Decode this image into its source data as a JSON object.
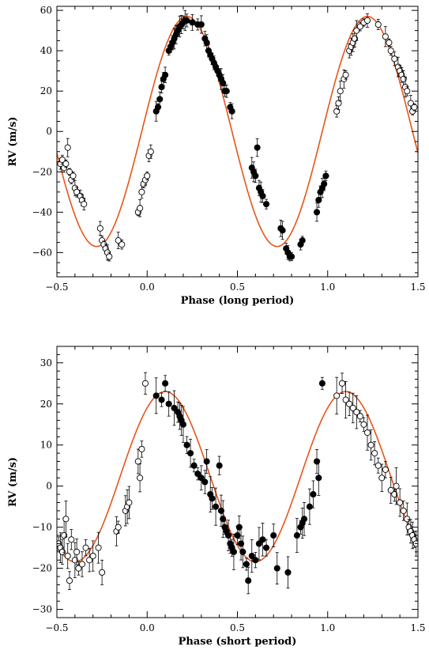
{
  "chart_data": [
    {
      "type": "scatter",
      "xlabel": "Phase (long period)",
      "ylabel": "RV (m/s)",
      "xlim": [
        -0.5,
        1.5
      ],
      "ylim": [
        -72,
        62
      ],
      "xticks": [
        -0.5,
        0.0,
        0.5,
        1.0,
        1.5
      ],
      "xtick_labels": [
        "−0.5",
        "0.0",
        "0.5",
        "1.0",
        "1.5"
      ],
      "yticks": [
        -60,
        -40,
        -20,
        0,
        20,
        40,
        60
      ],
      "ytick_labels": [
        "−60",
        "−40",
        "−20",
        "0",
        "20",
        "40",
        "60"
      ],
      "grid": false,
      "legend": "none",
      "model_curve": {
        "name": "",
        "color": "#e8541a",
        "amplitude": 57,
        "period": 1.0,
        "phase_of_max": 0.22
      },
      "series": [
        {
          "marker": "filled-circle",
          "points": [
            [
              0.05,
              10
            ],
            [
              0.06,
              12
            ],
            [
              0.07,
              16
            ],
            [
              0.08,
              22
            ],
            [
              0.09,
              26
            ],
            [
              0.1,
              28
            ],
            [
              0.12,
              40
            ],
            [
              0.13,
              42
            ],
            [
              0.14,
              44
            ],
            [
              0.15,
              46
            ],
            [
              0.16,
              48
            ],
            [
              0.17,
              50
            ],
            [
              0.18,
              52
            ],
            [
              0.19,
              53
            ],
            [
              0.2,
              54
            ],
            [
              0.21,
              55
            ],
            [
              0.22,
              55
            ],
            [
              0.25,
              54
            ],
            [
              0.28,
              53
            ],
            [
              0.3,
              53
            ],
            [
              0.32,
              46
            ],
            [
              0.33,
              44
            ],
            [
              0.34,
              40
            ],
            [
              0.35,
              38
            ],
            [
              0.36,
              36
            ],
            [
              0.37,
              34
            ],
            [
              0.38,
              32
            ],
            [
              0.39,
              30
            ],
            [
              0.4,
              28
            ],
            [
              0.41,
              26
            ],
            [
              0.42,
              24
            ],
            [
              0.43,
              20
            ],
            [
              0.44,
              20
            ],
            [
              0.46,
              12
            ],
            [
              0.47,
              10
            ],
            [
              0.58,
              -18
            ],
            [
              0.59,
              -20
            ],
            [
              0.6,
              -22
            ],
            [
              0.61,
              -8
            ],
            [
              0.62,
              -28
            ],
            [
              0.63,
              -30
            ],
            [
              0.64,
              -32
            ],
            [
              0.66,
              -36
            ],
            [
              0.74,
              -48
            ],
            [
              0.75,
              -49
            ],
            [
              0.77,
              -58
            ],
            [
              0.78,
              -60
            ],
            [
              0.79,
              -62
            ],
            [
              0.8,
              -62
            ],
            [
              0.85,
              -56
            ],
            [
              0.86,
              -54
            ],
            [
              0.94,
              -40
            ],
            [
              0.95,
              -34
            ],
            [
              0.96,
              -30
            ],
            [
              0.97,
              -28
            ],
            [
              0.98,
              -26
            ],
            [
              0.99,
              -22
            ]
          ]
        },
        {
          "marker": "open-circle",
          "points": [
            [
              -0.48,
              -16
            ],
            [
              -0.47,
              -14
            ],
            [
              -0.46,
              -18
            ],
            [
              -0.45,
              -16
            ],
            [
              -0.44,
              -8
            ],
            [
              -0.43,
              -20
            ],
            [
              -0.42,
              -24
            ],
            [
              -0.41,
              -22
            ],
            [
              -0.4,
              -28
            ],
            [
              -0.39,
              -30
            ],
            [
              -0.37,
              -32
            ],
            [
              -0.36,
              -34
            ],
            [
              -0.35,
              -36
            ],
            [
              -0.26,
              -48
            ],
            [
              -0.25,
              -54
            ],
            [
              -0.24,
              -56
            ],
            [
              -0.23,
              -58
            ],
            [
              -0.22,
              -60
            ],
            [
              -0.21,
              -62
            ],
            [
              -0.16,
              -54
            ],
            [
              -0.14,
              -56
            ],
            [
              -0.05,
              -40
            ],
            [
              -0.04,
              -38
            ],
            [
              -0.03,
              -30
            ],
            [
              -0.02,
              -26
            ],
            [
              -0.01,
              -24
            ],
            [
              0.0,
              -22
            ],
            [
              0.01,
              -12
            ],
            [
              0.02,
              -10
            ],
            [
              1.05,
              10
            ],
            [
              1.06,
              14
            ],
            [
              1.07,
              20
            ],
            [
              1.09,
              26
            ],
            [
              1.1,
              28
            ],
            [
              1.12,
              40
            ],
            [
              1.13,
              42
            ],
            [
              1.14,
              44
            ],
            [
              1.15,
              46
            ],
            [
              1.16,
              50
            ],
            [
              1.18,
              52
            ],
            [
              1.2,
              54
            ],
            [
              1.22,
              55
            ],
            [
              1.28,
              53
            ],
            [
              1.32,
              47
            ],
            [
              1.34,
              44
            ],
            [
              1.35,
              40
            ],
            [
              1.37,
              36
            ],
            [
              1.39,
              32
            ],
            [
              1.4,
              30
            ],
            [
              1.41,
              28
            ],
            [
              1.42,
              26
            ],
            [
              1.43,
              22
            ],
            [
              1.44,
              20
            ],
            [
              1.46,
              14
            ],
            [
              1.47,
              10
            ],
            [
              1.48,
              12
            ]
          ]
        }
      ]
    },
    {
      "type": "scatter",
      "xlabel": "Phase (short period)",
      "ylabel": "RV (m/s)",
      "xlim": [
        -0.5,
        1.5
      ],
      "ylim": [
        -32,
        34
      ],
      "xticks": [
        -0.5,
        0.0,
        0.5,
        1.0,
        1.5
      ],
      "xtick_labels": [
        "−0.5",
        "0.0",
        "0.5",
        "1.0",
        "1.5"
      ],
      "yticks": [
        -30,
        -20,
        -10,
        0,
        10,
        20,
        30
      ],
      "ytick_labels": [
        "−30",
        "−20",
        "−10",
        "0",
        "10",
        "20",
        "30"
      ],
      "grid": false,
      "legend": "none",
      "model_curve": {
        "name": "",
        "color": "#e8541a",
        "amplitude": 20.7,
        "offset": 2.3,
        "period": 1.0,
        "phase_of_max": 0.1
      },
      "series": [
        {
          "marker": "filled-circle",
          "points": [
            [
              0.05,
              22
            ],
            [
              0.08,
              21
            ],
            [
              0.1,
              25
            ],
            [
              0.12,
              20
            ],
            [
              0.15,
              19
            ],
            [
              0.17,
              18
            ],
            [
              0.18,
              17
            ],
            [
              0.19,
              16
            ],
            [
              0.2,
              15
            ],
            [
              0.22,
              10
            ],
            [
              0.24,
              8
            ],
            [
              0.26,
              5
            ],
            [
              0.28,
              3
            ],
            [
              0.3,
              2
            ],
            [
              0.32,
              1
            ],
            [
              0.33,
              6
            ],
            [
              0.35,
              -2
            ],
            [
              0.36,
              -3
            ],
            [
              0.38,
              -5
            ],
            [
              0.4,
              5
            ],
            [
              0.41,
              -6
            ],
            [
              0.42,
              -8
            ],
            [
              0.43,
              -10
            ],
            [
              0.44,
              -11
            ],
            [
              0.45,
              -12
            ],
            [
              0.46,
              -14
            ],
            [
              0.47,
              -15
            ],
            [
              0.48,
              -16
            ],
            [
              0.5,
              -12
            ],
            [
              0.51,
              -10
            ],
            [
              0.52,
              -14
            ],
            [
              0.53,
              -16
            ],
            [
              0.55,
              -19
            ],
            [
              0.56,
              -23
            ],
            [
              0.58,
              -17
            ],
            [
              0.6,
              -18
            ],
            [
              0.62,
              -14
            ],
            [
              0.64,
              -13
            ],
            [
              0.66,
              -15
            ],
            [
              0.7,
              -12
            ],
            [
              0.72,
              -20
            ],
            [
              0.78,
              -21
            ],
            [
              0.83,
              -12
            ],
            [
              0.85,
              -10
            ],
            [
              0.86,
              -9
            ],
            [
              0.87,
              -8
            ],
            [
              0.9,
              -5
            ],
            [
              0.92,
              -2
            ],
            [
              0.94,
              6
            ],
            [
              0.95,
              2
            ],
            [
              0.97,
              25
            ]
          ]
        },
        {
          "marker": "open-circle",
          "points": [
            [
              -0.49,
              -14
            ],
            [
              -0.48,
              -15
            ],
            [
              -0.47,
              -16
            ],
            [
              -0.46,
              -12
            ],
            [
              -0.45,
              -8
            ],
            [
              -0.44,
              -17
            ],
            [
              -0.43,
              -23
            ],
            [
              -0.42,
              -13
            ],
            [
              -0.4,
              -18
            ],
            [
              -0.39,
              -16
            ],
            [
              -0.38,
              -20
            ],
            [
              -0.36,
              -19
            ],
            [
              -0.34,
              -15
            ],
            [
              -0.32,
              -18
            ],
            [
              -0.3,
              -17
            ],
            [
              -0.27,
              -15
            ],
            [
              -0.25,
              -21
            ],
            [
              -0.17,
              -11
            ],
            [
              -0.16,
              -10
            ],
            [
              -0.12,
              -6
            ],
            [
              -0.11,
              -5
            ],
            [
              -0.1,
              -4
            ],
            [
              -0.05,
              6
            ],
            [
              -0.04,
              2
            ],
            [
              -0.03,
              9
            ],
            [
              -0.01,
              25
            ],
            [
              1.05,
              22
            ],
            [
              1.08,
              25
            ],
            [
              1.1,
              21
            ],
            [
              1.12,
              20
            ],
            [
              1.14,
              19
            ],
            [
              1.16,
              18
            ],
            [
              1.18,
              17
            ],
            [
              1.2,
              15
            ],
            [
              1.22,
              13
            ],
            [
              1.24,
              10
            ],
            [
              1.26,
              8
            ],
            [
              1.28,
              5
            ],
            [
              1.3,
              2
            ],
            [
              1.32,
              4
            ],
            [
              1.35,
              -1
            ],
            [
              1.37,
              -2
            ],
            [
              1.38,
              0
            ],
            [
              1.4,
              -4
            ],
            [
              1.42,
              -6
            ],
            [
              1.44,
              -8
            ],
            [
              1.45,
              -10
            ],
            [
              1.46,
              -11
            ],
            [
              1.47,
              -12
            ],
            [
              1.48,
              -13
            ],
            [
              1.49,
              -14
            ]
          ]
        }
      ]
    }
  ]
}
